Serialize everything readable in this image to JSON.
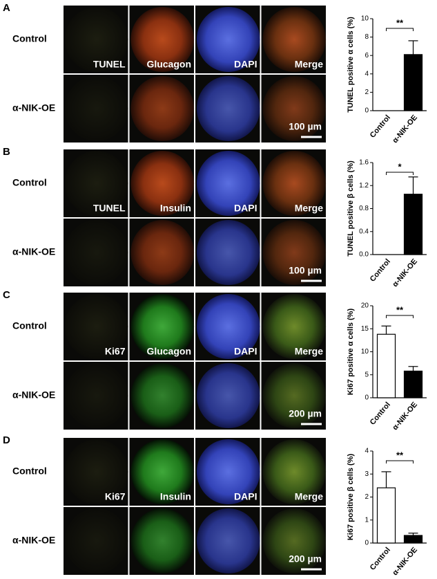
{
  "panels": [
    {
      "label": "A",
      "rows": [
        "Control",
        "α-NIK-OE"
      ],
      "stains": [
        "TUNEL",
        "Glucagon",
        "DAPI",
        "Merge"
      ],
      "scale_bar": "100 µm"
    },
    {
      "label": "B",
      "rows": [
        "Control",
        "α-NIK-OE"
      ],
      "stains": [
        "TUNEL",
        "Insulin",
        "DAPI",
        "Merge"
      ],
      "scale_bar": "100 µm"
    },
    {
      "label": "C",
      "rows": [
        "Control",
        "α-NIK-OE"
      ],
      "stains": [
        "Ki67",
        "Glucagon",
        "DAPI",
        "Merge"
      ],
      "scale_bar": "200 µm"
    },
    {
      "label": "D",
      "rows": [
        "Control",
        "α-NIK-OE"
      ],
      "stains": [
        "Ki67",
        "Insulin",
        "DAPI",
        "Merge"
      ],
      "scale_bar": "200 µm"
    }
  ],
  "chart_data": [
    {
      "type": "bar",
      "ylabel": "TUNEL positive α cells (%)",
      "categories": [
        "Control",
        "α-NIK-OE"
      ],
      "values": [
        0,
        6.1
      ],
      "errors": [
        0,
        1.5
      ],
      "colors": [
        "#ffffff",
        "#000000"
      ],
      "ylim": [
        0,
        10
      ],
      "yticks": [
        0,
        2,
        4,
        6,
        8,
        10
      ],
      "significance": "**"
    },
    {
      "type": "bar",
      "ylabel": "TUNEL positive β cells (%)",
      "categories": [
        "Control",
        "α-NIK-OE"
      ],
      "values": [
        0,
        1.05
      ],
      "errors": [
        0,
        0.3
      ],
      "colors": [
        "#ffffff",
        "#000000"
      ],
      "ylim": [
        0,
        1.6
      ],
      "yticks": [
        {
          "value": 0,
          "label": "0.0"
        },
        0.4,
        0.8,
        1.2,
        1.6
      ],
      "significance": "*"
    },
    {
      "type": "bar",
      "ylabel": "Ki67 positive α cells (%)",
      "categories": [
        "Control",
        "α-NIK-OE"
      ],
      "values": [
        13.8,
        5.8
      ],
      "errors": [
        1.8,
        1.0
      ],
      "colors": [
        "#ffffff",
        "#000000"
      ],
      "ylim": [
        0,
        20
      ],
      "yticks": [
        0,
        5,
        10,
        15,
        20
      ],
      "significance": "**"
    },
    {
      "type": "bar",
      "ylabel": "Ki67 positive β cells (%)",
      "categories": [
        "Control",
        "α-NIK-OE"
      ],
      "values": [
        2.4,
        0.33
      ],
      "errors": [
        0.7,
        0.1
      ],
      "colors": [
        "#ffffff",
        "#000000"
      ],
      "ylim": [
        0,
        4
      ],
      "yticks": [
        0,
        1,
        2,
        3,
        4
      ],
      "significance": "**"
    }
  ]
}
